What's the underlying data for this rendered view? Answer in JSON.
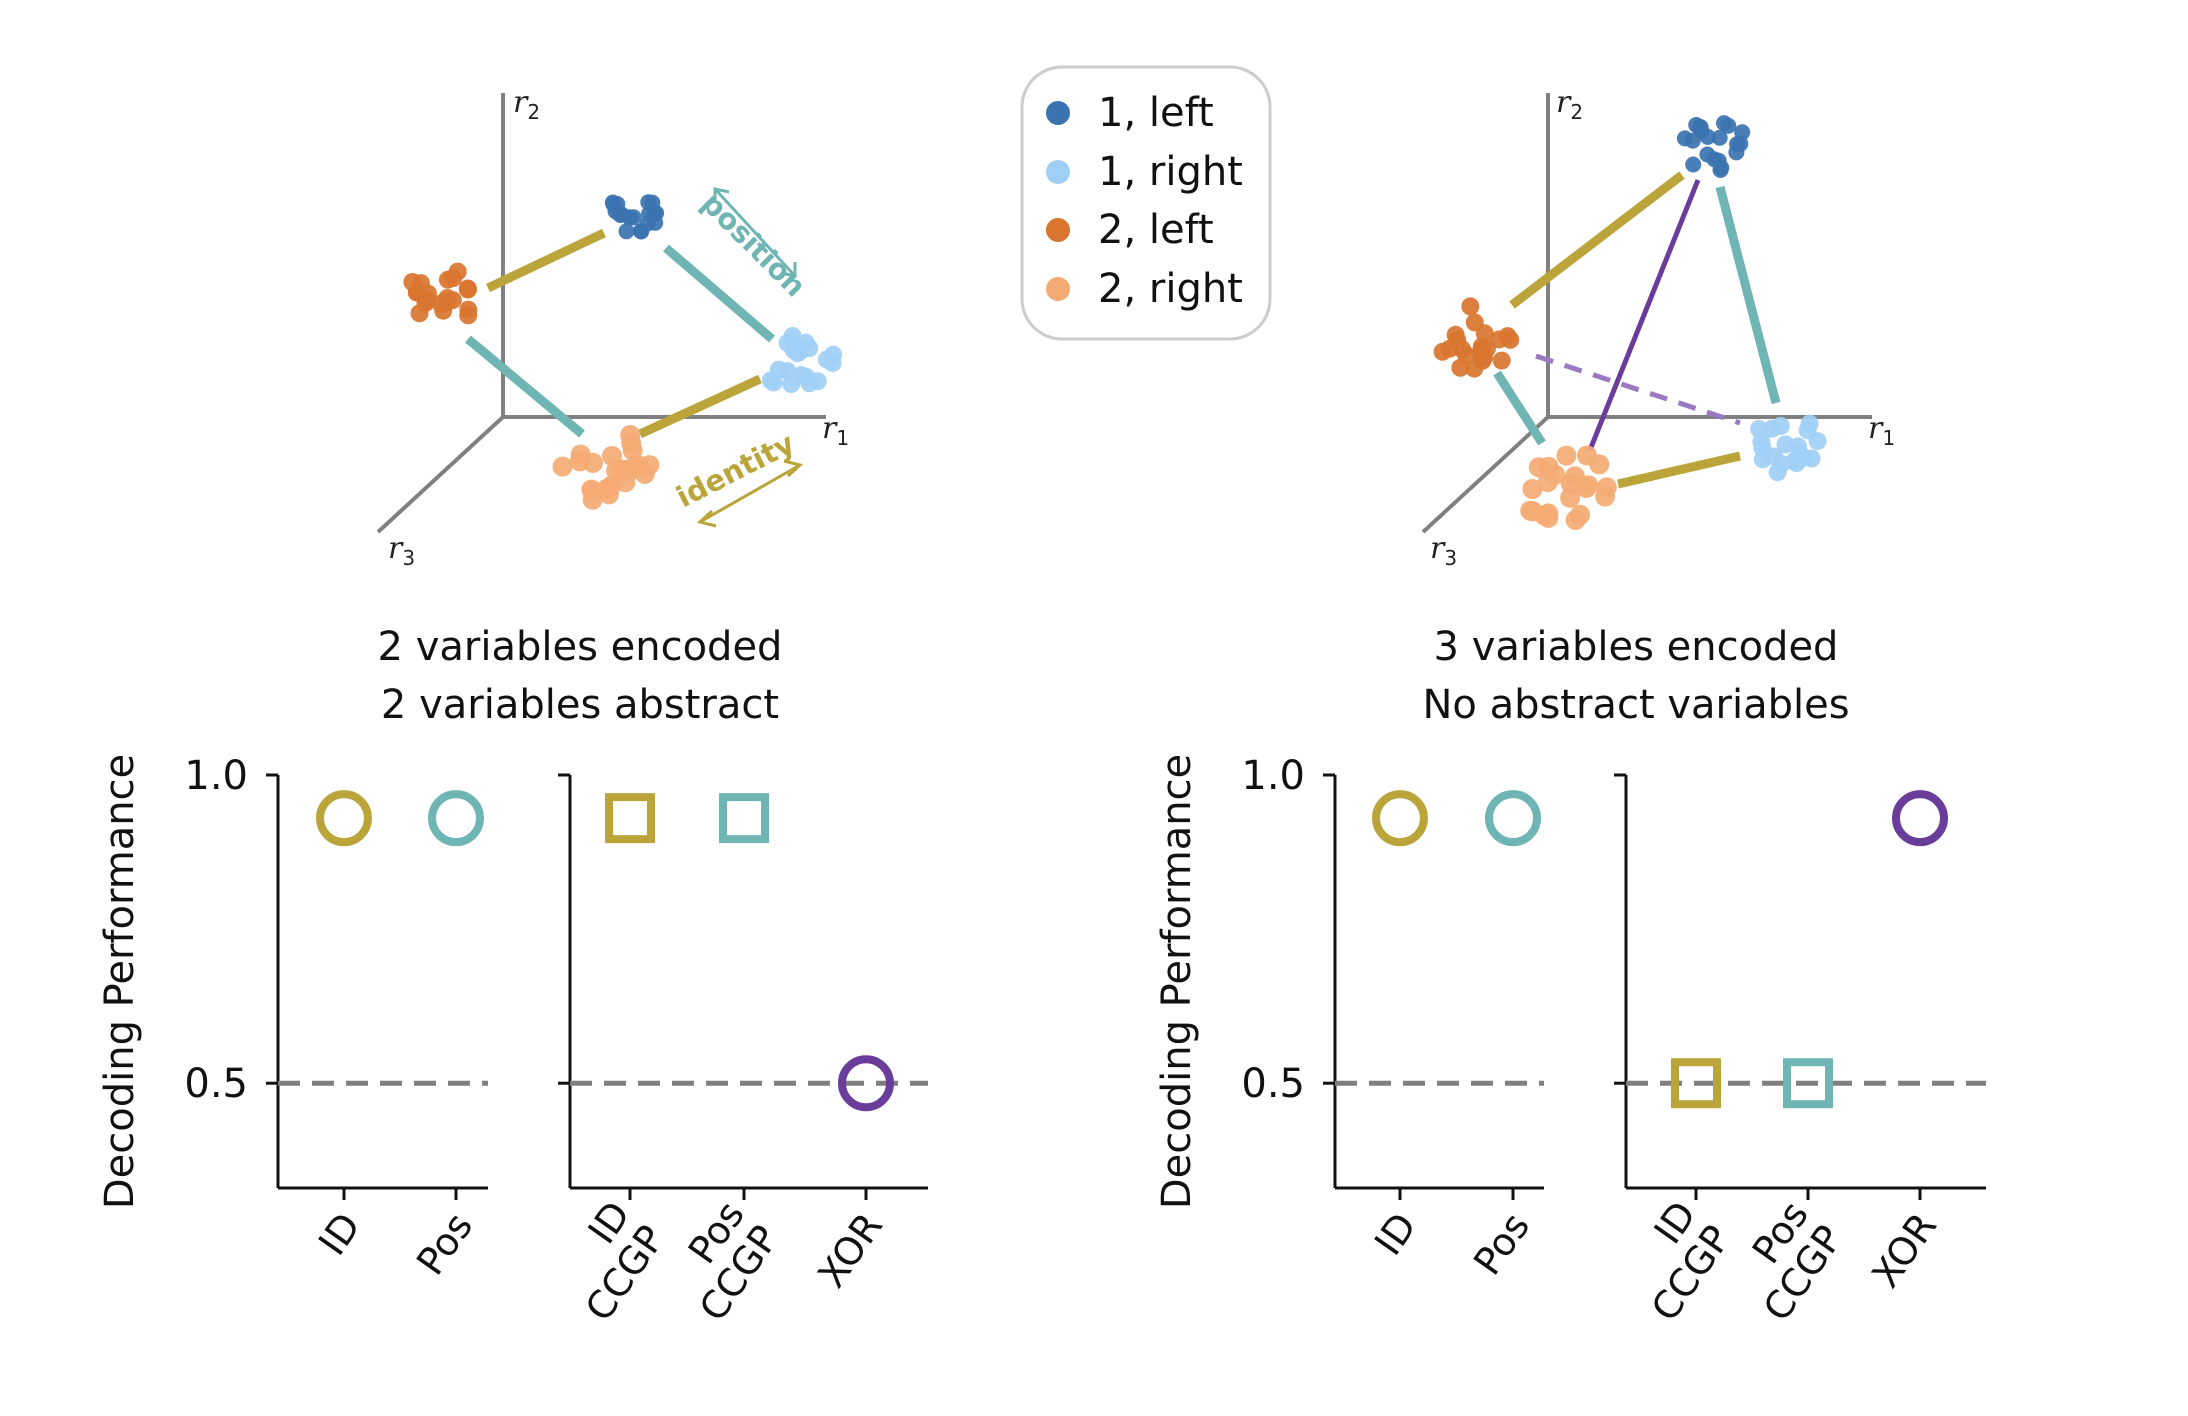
{
  "legend": {
    "items": [
      {
        "label": "1, left",
        "color": "#3b73b0"
      },
      {
        "label": "1, right",
        "color": "#9fcff5"
      },
      {
        "label": "2, left",
        "color": "#d9752f"
      },
      {
        "label": "2, right",
        "color": "#f4aa73"
      }
    ]
  },
  "colors": {
    "identity": "#bba53a",
    "position": "#6fb5b4",
    "xor": "#6a3d9a",
    "chance": "#7f7f7f",
    "axis": "#808080"
  },
  "scatter3d": [
    {
      "axis_labels": {
        "r1": "r",
        "r1_sub": "1",
        "r2": "r",
        "r2_sub": "2",
        "r3": "r",
        "r3_sub": "3"
      },
      "arrow_labels": {
        "position": "position",
        "identity": "identity"
      },
      "caption_line1": "2 variables encoded",
      "caption_line2": "2 variables abstract"
    },
    {
      "axis_labels": {
        "r1": "r",
        "r1_sub": "1",
        "r2": "r",
        "r2_sub": "2",
        "r3": "r",
        "r3_sub": "3"
      },
      "caption_line1": "3 variables encoded",
      "caption_line2": "No abstract variables"
    }
  ],
  "chart_data": [
    {
      "type": "scatter",
      "ylabel": "Decoding Performance",
      "yticks": [
        "1.0",
        "0.5"
      ],
      "ylim": [
        0.33,
        1.0
      ],
      "chance_level": 0.5,
      "categories": [
        "ID",
        "Pos"
      ],
      "points": [
        {
          "category": "ID",
          "value": 0.93,
          "marker": "circle",
          "color": "#bba53a"
        },
        {
          "category": "Pos",
          "value": 0.93,
          "marker": "circle",
          "color": "#6fb5b4"
        }
      ]
    },
    {
      "type": "scatter",
      "ylim": [
        0.33,
        1.0
      ],
      "chance_level": 0.5,
      "categories": [
        "ID\nCCGP",
        "Pos\nCCGP",
        "XOR"
      ],
      "points": [
        {
          "category": "ID CCGP",
          "value": 0.93,
          "marker": "square",
          "color": "#bba53a"
        },
        {
          "category": "Pos CCGP",
          "value": 0.93,
          "marker": "square",
          "color": "#6fb5b4"
        },
        {
          "category": "XOR",
          "value": 0.5,
          "marker": "circle",
          "color": "#6a3d9a"
        }
      ]
    },
    {
      "type": "scatter",
      "ylabel": "Decoding Performance",
      "yticks": [
        "1.0",
        "0.5"
      ],
      "ylim": [
        0.33,
        1.0
      ],
      "chance_level": 0.5,
      "categories": [
        "ID",
        "Pos"
      ],
      "points": [
        {
          "category": "ID",
          "value": 0.93,
          "marker": "circle",
          "color": "#bba53a"
        },
        {
          "category": "Pos",
          "value": 0.93,
          "marker": "circle",
          "color": "#6fb5b4"
        }
      ]
    },
    {
      "type": "scatter",
      "ylim": [
        0.33,
        1.0
      ],
      "chance_level": 0.5,
      "categories": [
        "ID\nCCGP",
        "Pos\nCCGP",
        "XOR"
      ],
      "points": [
        {
          "category": "ID CCGP",
          "value": 0.5,
          "marker": "square",
          "color": "#bba53a"
        },
        {
          "category": "Pos CCGP",
          "value": 0.5,
          "marker": "square",
          "color": "#6fb5b4"
        },
        {
          "category": "XOR",
          "value": 0.93,
          "marker": "circle",
          "color": "#6a3d9a"
        }
      ]
    }
  ]
}
